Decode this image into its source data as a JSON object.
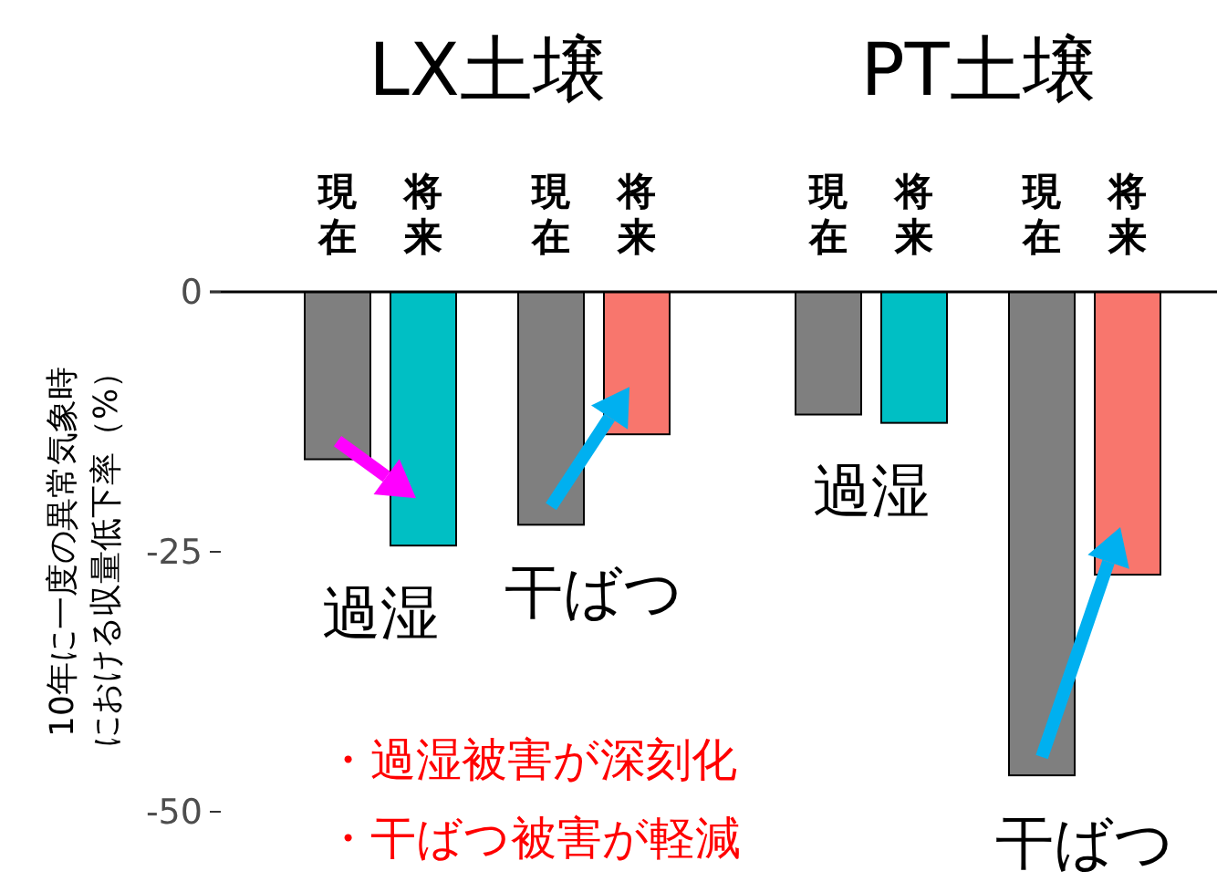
{
  "chart_data": {
    "type": "bar",
    "categories": [
      "現在",
      "将来",
      "現在",
      "将来",
      "現在",
      "将来",
      "現在",
      "将来"
    ],
    "values": [
      -16.1,
      -24.4,
      -22.4,
      -13.7,
      -11.8,
      -12.6,
      -46.5,
      -27.2
    ],
    "colors": [
      "#7f7f7f",
      "#00bfc4",
      "#7f7f7f",
      "#f8766d",
      "#7f7f7f",
      "#00bfc4",
      "#7f7f7f",
      "#f8766d"
    ],
    "ylabel": "10年に一度の異常気象時における収量低下率（%）",
    "ylim": [
      -50,
      0
    ],
    "yticks": [
      0,
      -25,
      -50
    ],
    "annotations": [
      "LX土壌",
      "PT土壌",
      "過湿",
      "干ばつ",
      "過湿",
      "干ばつ",
      "・過湿被害が深刻化",
      "・干ばつ被害が軽減"
    ]
  }
}
